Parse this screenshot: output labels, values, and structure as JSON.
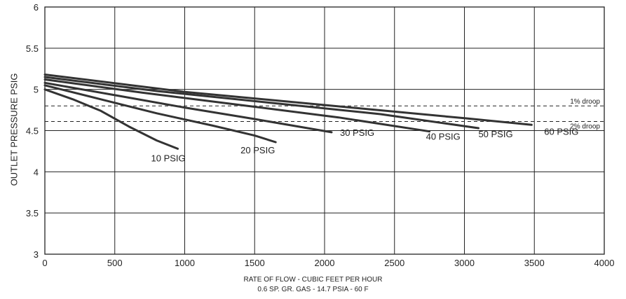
{
  "chart_data": {
    "type": "line",
    "title": "",
    "xlabel": "RATE OF FLOW - CUBIC FEET PER HOUR",
    "xlabel_sub": "0.6 SP. GR. GAS - 14.7 PSIA - 60 F",
    "ylabel": "OUTLET PRESSURE PSIG",
    "xlim": [
      0,
      4000
    ],
    "ylim": [
      3,
      6
    ],
    "x_ticks": [
      "0",
      "500",
      "1000",
      "1500",
      "2000",
      "2500",
      "3000",
      "3500",
      "4000"
    ],
    "y_ticks": [
      "3",
      "3.5",
      "4",
      "4.5",
      "5",
      "5.5",
      "6"
    ],
    "grid": true,
    "series": [
      {
        "name": "10 PSIG",
        "x": [
          0,
          200,
          400,
          600,
          800,
          950
        ],
        "y": [
          5.0,
          4.88,
          4.74,
          4.55,
          4.38,
          4.28
        ]
      },
      {
        "name": "20 PSIG",
        "x": [
          0,
          400,
          800,
          1200,
          1500,
          1650
        ],
        "y": [
          5.05,
          4.88,
          4.71,
          4.56,
          4.44,
          4.36
        ]
      },
      {
        "name": "30 PSIG",
        "x": [
          0,
          500,
          1000,
          1500,
          2050
        ],
        "y": [
          5.08,
          4.93,
          4.78,
          4.64,
          4.48
        ]
      },
      {
        "name": "40 PSIG",
        "x": [
          0,
          700,
          1400,
          2100,
          2750
        ],
        "y": [
          5.12,
          4.96,
          4.81,
          4.66,
          4.49
        ]
      },
      {
        "name": "50 PSIG",
        "x": [
          0,
          800,
          1600,
          2400,
          3100
        ],
        "y": [
          5.15,
          4.98,
          4.84,
          4.7,
          4.53
        ]
      },
      {
        "name": "60 PSIG",
        "x": [
          0,
          1000,
          2000,
          3000,
          3480
        ],
        "y": [
          5.18,
          4.97,
          4.81,
          4.65,
          4.57
        ]
      }
    ],
    "reference_lines": [
      {
        "label": "1% droop",
        "y": 4.8
      },
      {
        "label": "2% droop",
        "y": 4.61
      }
    ]
  }
}
